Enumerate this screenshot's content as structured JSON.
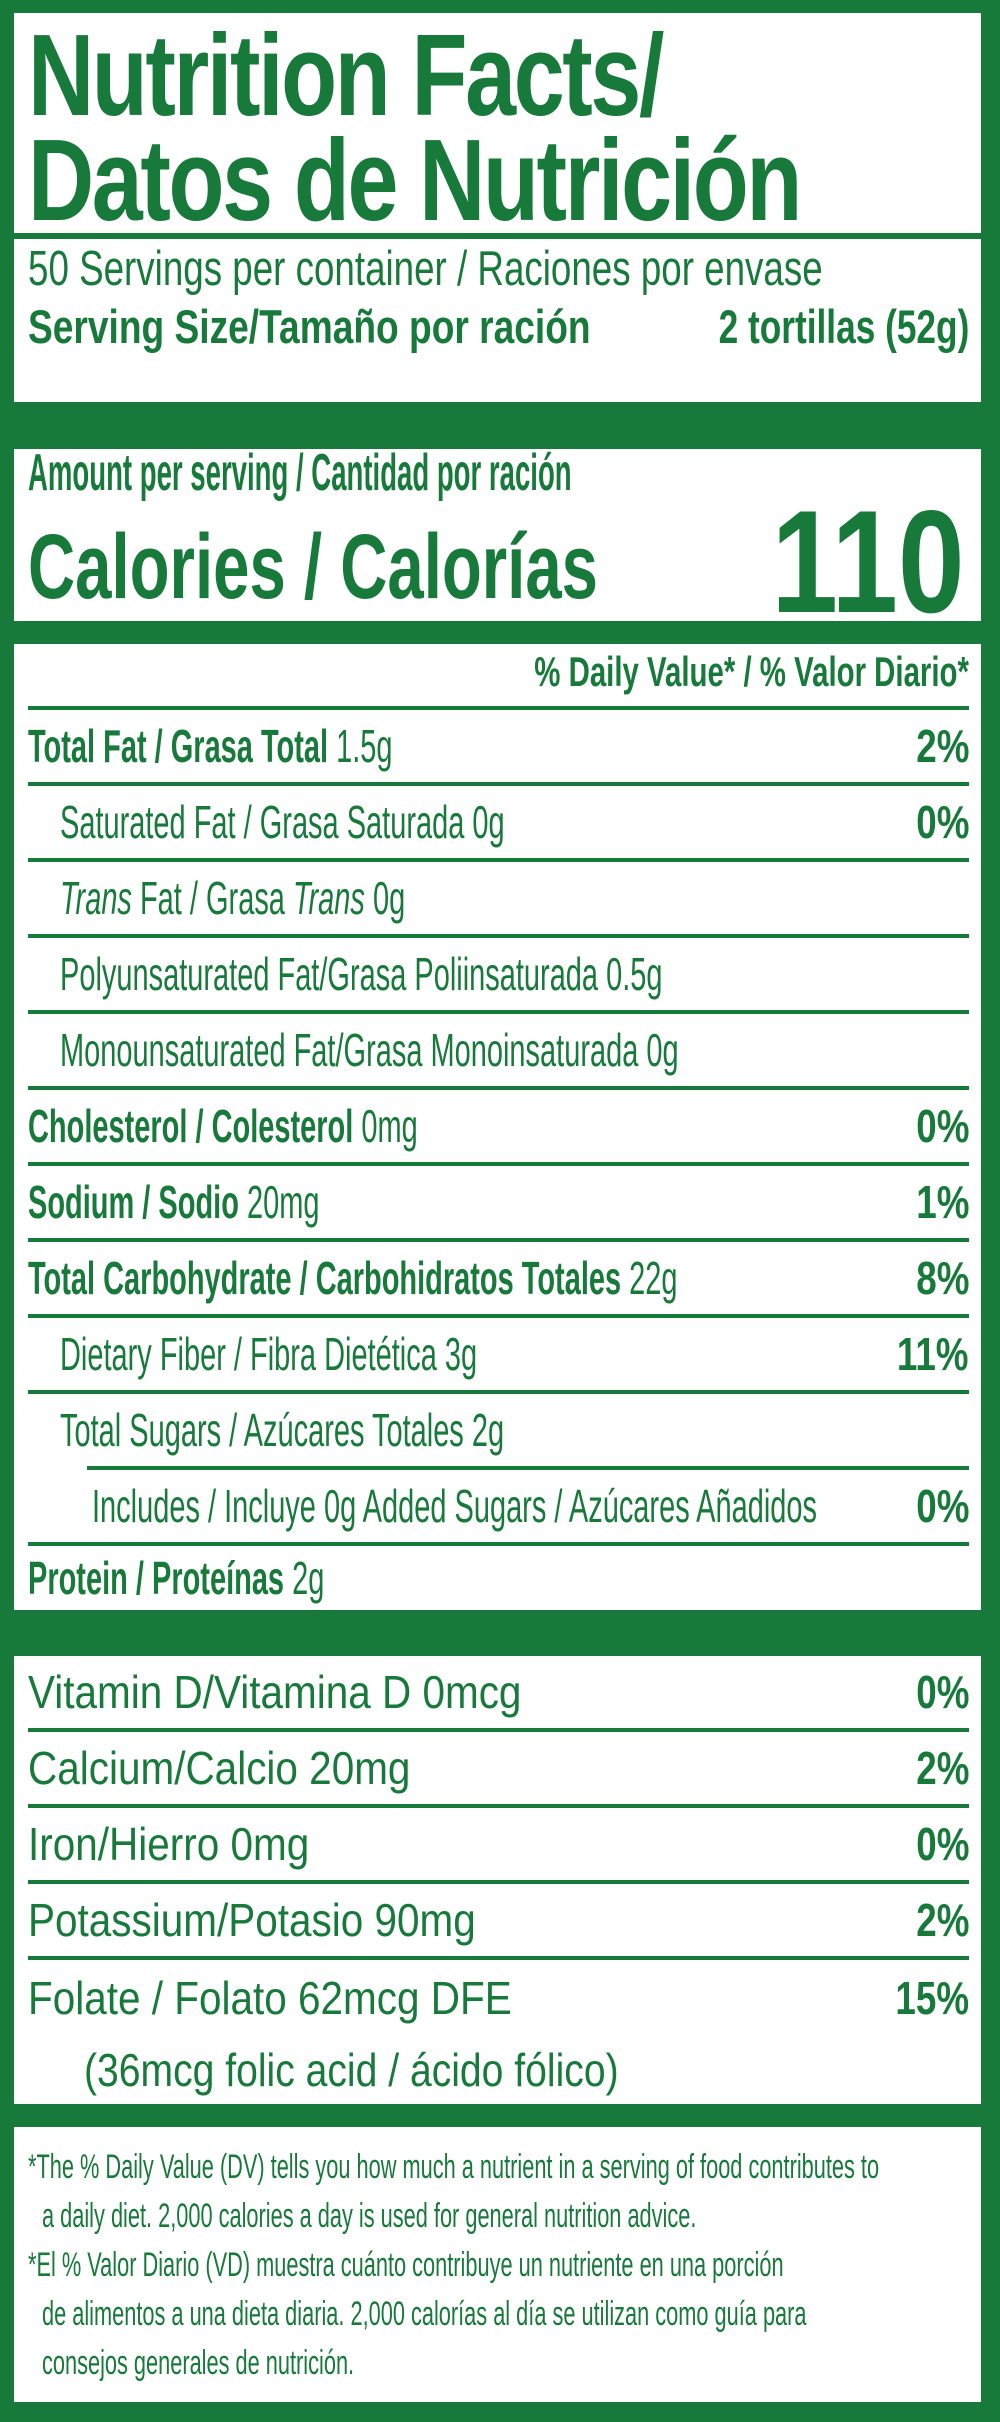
{
  "accent_green": "#177A3B",
  "header": {
    "title_line1": "Nutrition Facts/",
    "title_line2": "Datos de Nutrición",
    "servings_per_container": "50 Servings per container / Raciones por envase",
    "serving_size_label": "Serving Size/Tamaño por ración",
    "serving_size_value": "2 tortillas (52g)"
  },
  "calories": {
    "amount_per_serving": "Amount per serving / Cantidad por ración",
    "label": "Calories / Calorías",
    "value": "110"
  },
  "daily_value_header": "% Daily Value* / % Valor Diario*",
  "nutrients": [
    {
      "bold": "Total Fat / Grasa Total",
      "regular": " 1.5g",
      "percent": "2%"
    },
    {
      "regular": "Saturated Fat / Grasa Saturada 0g",
      "percent": "0%"
    },
    {
      "it1": "Trans",
      "mid": " Fat / Grasa ",
      "it2": "Trans",
      "end": " 0g"
    },
    {
      "regular": "Polyunsaturated Fat/Grasa Poliinsaturada 0.5g"
    },
    {
      "regular": "Monounsaturated Fat/Grasa Monoinsaturada 0g"
    },
    {
      "bold": "Cholesterol / Colesterol",
      "regular": " 0mg",
      "percent": "0%"
    },
    {
      "bold": "Sodium / Sodio",
      "regular": " 20mg",
      "percent": "1%"
    },
    {
      "bold": "Total Carbohydrate / Carbohidratos Totales",
      "regular": " 22g",
      "percent": "8%"
    },
    {
      "regular": "Dietary Fiber / Fibra Dietética 3g",
      "percent": "11%"
    },
    {
      "regular": "Total Sugars / Azúcares Totales 2g"
    },
    {
      "regular": "Includes / Incluye 0g Added Sugars / Azúcares Añadidos",
      "percent": "0%"
    },
    {
      "bold": "Protein / Proteínas",
      "regular": " 2g"
    }
  ],
  "vitamins": [
    {
      "label": "Vitamin D/Vitamina D 0mcg",
      "percent": "0%"
    },
    {
      "label": "Calcium/Calcio 20mg",
      "percent": "2%"
    },
    {
      "label": "Iron/Hierro 0mg",
      "percent": "0%"
    },
    {
      "label": "Potassium/Potasio 90mg",
      "percent": "2%"
    },
    {
      "label": "Folate / Folato 62mcg DFE",
      "percent": "15%",
      "sub": "(36mcg folic acid / ácido fólico)"
    }
  ],
  "footnotes": {
    "en_line1": "*The % Daily Value (DV) tells you how much a nutrient in a serving of food contributes to",
    "en_line2": "a daily diet. 2,000 calories a day is used for general nutrition advice.",
    "es_line1": "*El % Valor Diario (VD) muestra cuánto contribuye un nutriente en una porción",
    "es_line2": "de alimentos a una dieta diaria. 2,000 calorías al día se utilizan como guía para",
    "es_line3": "consejos generales de nutrición."
  }
}
